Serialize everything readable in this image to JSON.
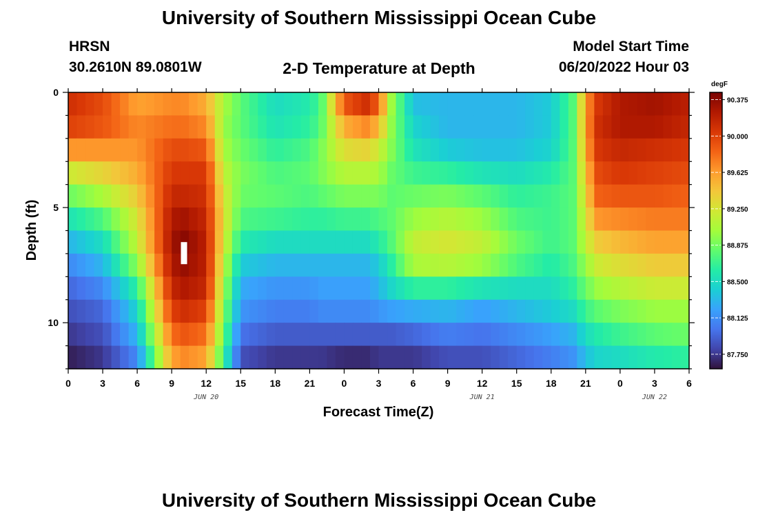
{
  "page": {
    "title": "University of Southern Mississippi Ocean Cube",
    "footer_title": "University of Southern Mississippi Ocean Cube",
    "station": {
      "name": "HRSN",
      "coords": "30.2610N  89.0801W"
    },
    "subtitle": "2-D Temperature at Depth",
    "model_start": {
      "label": "Model Start Time",
      "value": "06/20/2022 Hour 03"
    }
  },
  "colors": {
    "stops": [
      "#30123b",
      "#4145ab",
      "#4675ed",
      "#39a2fc",
      "#1bcfd4",
      "#24eca6",
      "#61fc6c",
      "#a4fc3b",
      "#d1e834",
      "#f3c63a",
      "#fe9b2d",
      "#f36315",
      "#d93806",
      "#b11901",
      "#7a0403"
    ]
  },
  "chart_data": {
    "type": "heatmap",
    "title": "2-D Temperature at Depth",
    "xlabel": "Forecast Time(Z)",
    "ylabel": "Depth (ft)",
    "x_range_hours": [
      0,
      54
    ],
    "y_range_ft": [
      0,
      12
    ],
    "x_ticks": [
      {
        "h": 0,
        "label": "0"
      },
      {
        "h": 3,
        "label": "3"
      },
      {
        "h": 6,
        "label": "6"
      },
      {
        "h": 9,
        "label": "9"
      },
      {
        "h": 12,
        "label": "12"
      },
      {
        "h": 15,
        "label": "15"
      },
      {
        "h": 18,
        "label": "18"
      },
      {
        "h": 21,
        "label": "21"
      },
      {
        "h": 24,
        "label": "0"
      },
      {
        "h": 27,
        "label": "3"
      },
      {
        "h": 30,
        "label": "6"
      },
      {
        "h": 33,
        "label": "9"
      },
      {
        "h": 36,
        "label": "12"
      },
      {
        "h": 39,
        "label": "15"
      },
      {
        "h": 42,
        "label": "18"
      },
      {
        "h": 45,
        "label": "21"
      },
      {
        "h": 48,
        "label": "0"
      },
      {
        "h": 51,
        "label": "3"
      },
      {
        "h": 54,
        "label": "6"
      }
    ],
    "date_labels": [
      {
        "h": 12,
        "label": "JUN 20"
      },
      {
        "h": 36,
        "label": "JUN 21"
      },
      {
        "h": 51,
        "label": "JUN 22"
      }
    ],
    "y_ticks": [
      {
        "v": 0,
        "label": "0"
      },
      {
        "v": 5,
        "label": "5"
      },
      {
        "v": 10,
        "label": "10"
      }
    ],
    "colorbar": {
      "unit": "degF",
      "min": 87.6,
      "max": 90.45,
      "ticks": [
        "87.750",
        "88.125",
        "88.500",
        "88.875",
        "89.250",
        "89.625",
        "90.000",
        "90.375"
      ],
      "tick_values": [
        87.75,
        88.125,
        88.5,
        88.875,
        89.25,
        89.625,
        90.0,
        90.375
      ]
    },
    "depth_levels_ft": [
      0,
      1,
      2,
      3,
      4,
      5,
      6,
      7,
      8,
      9,
      10,
      11,
      12
    ],
    "key_times_hours": [
      0,
      3,
      6,
      9,
      10,
      12,
      13.5,
      15,
      18,
      21,
      22,
      24,
      26,
      27,
      28,
      30,
      33,
      36,
      39,
      42,
      44,
      45,
      46,
      48,
      51,
      54
    ],
    "temperature_degF": [
      [
        90.1,
        89.9,
        89.5,
        89.7,
        89.7,
        89.5,
        89.1,
        88.8,
        88.5,
        88.6,
        88.8,
        90.1,
        90.3,
        90.0,
        89.1,
        88.3,
        88.3,
        88.3,
        88.3,
        88.4,
        88.8,
        89.6,
        90.0,
        90.2,
        90.3,
        90.2
      ],
      [
        90.1,
        90.0,
        89.7,
        89.7,
        89.7,
        89.6,
        89.0,
        88.8,
        88.5,
        88.6,
        88.7,
        89.7,
        89.9,
        89.7,
        89.0,
        88.4,
        88.3,
        88.3,
        88.3,
        88.4,
        88.8,
        89.6,
        90.1,
        90.3,
        90.3,
        90.2
      ],
      [
        89.9,
        89.8,
        89.7,
        89.9,
        89.9,
        89.8,
        89.0,
        88.8,
        88.6,
        88.7,
        88.9,
        89.4,
        89.5,
        89.3,
        89.0,
        88.5,
        88.3,
        88.3,
        88.3,
        88.4,
        88.8,
        89.6,
        90.1,
        90.2,
        90.2,
        90.1
      ],
      [
        89.4,
        89.5,
        89.6,
        90.0,
        90.0,
        90.0,
        89.1,
        88.9,
        88.7,
        88.8,
        88.9,
        89.2,
        89.2,
        89.1,
        88.9,
        88.6,
        88.5,
        88.4,
        88.4,
        88.5,
        88.8,
        89.5,
        90.0,
        90.1,
        90.0,
        90.0
      ],
      [
        89.0,
        89.2,
        89.5,
        90.1,
        90.1,
        90.1,
        89.2,
        88.9,
        88.8,
        88.8,
        88.9,
        89.0,
        89.0,
        89.0,
        88.8,
        88.8,
        88.8,
        88.7,
        88.6,
        88.7,
        88.8,
        89.4,
        89.9,
        90.0,
        90.0,
        89.9
      ],
      [
        88.7,
        88.9,
        89.3,
        90.2,
        90.2,
        90.1,
        89.3,
        88.8,
        88.8,
        88.7,
        88.7,
        88.8,
        88.8,
        88.8,
        88.8,
        88.9,
        89.0,
        88.9,
        88.7,
        88.7,
        88.8,
        89.3,
        89.8,
        89.8,
        89.8,
        89.8
      ],
      [
        88.4,
        88.6,
        89.2,
        90.3,
        90.4,
        90.2,
        89.3,
        88.7,
        88.6,
        88.6,
        88.6,
        88.6,
        88.6,
        88.7,
        88.8,
        89.1,
        89.2,
        89.1,
        88.8,
        88.7,
        88.8,
        89.2,
        89.5,
        89.6,
        89.7,
        89.7
      ],
      [
        88.2,
        88.4,
        89.1,
        90.3,
        90.4,
        90.2,
        89.2,
        88.5,
        88.4,
        88.4,
        88.4,
        88.4,
        88.4,
        88.5,
        88.7,
        89.2,
        89.3,
        89.2,
        88.9,
        88.7,
        88.8,
        89.1,
        89.3,
        89.4,
        89.5,
        89.5
      ],
      [
        88.0,
        88.2,
        88.8,
        90.2,
        90.3,
        90.2,
        89.1,
        88.3,
        88.2,
        88.2,
        88.2,
        88.2,
        88.2,
        88.3,
        88.5,
        88.9,
        88.9,
        88.8,
        88.6,
        88.5,
        88.7,
        88.9,
        89.1,
        89.2,
        89.3,
        89.3
      ],
      [
        87.9,
        88.0,
        88.5,
        90.1,
        90.2,
        90.1,
        89.0,
        88.2,
        88.1,
        88.1,
        88.2,
        88.2,
        88.2,
        88.3,
        88.4,
        88.4,
        88.4,
        88.3,
        88.4,
        88.5,
        88.6,
        88.8,
        88.9,
        89.0,
        89.1,
        89.1
      ],
      [
        87.8,
        87.9,
        88.4,
        89.9,
        90.0,
        89.9,
        88.9,
        88.1,
        88.0,
        88.0,
        88.0,
        88.0,
        88.0,
        88.0,
        88.0,
        88.1,
        88.2,
        88.1,
        88.2,
        88.3,
        88.4,
        88.6,
        88.7,
        88.8,
        88.9,
        88.9
      ],
      [
        87.7,
        87.8,
        88.2,
        89.7,
        89.8,
        89.7,
        88.8,
        87.9,
        87.8,
        87.8,
        87.8,
        87.8,
        87.8,
        87.8,
        87.8,
        87.8,
        87.9,
        87.9,
        88.0,
        88.1,
        88.2,
        88.4,
        88.5,
        88.6,
        88.7,
        88.8
      ],
      [
        87.6,
        87.7,
        88.0,
        89.5,
        89.6,
        89.5,
        88.6,
        87.8,
        87.7,
        87.7,
        87.7,
        87.6,
        87.6,
        87.7,
        87.7,
        87.7,
        87.8,
        87.8,
        87.9,
        88.0,
        88.1,
        88.3,
        88.4,
        88.4,
        88.5,
        88.5
      ]
    ]
  }
}
